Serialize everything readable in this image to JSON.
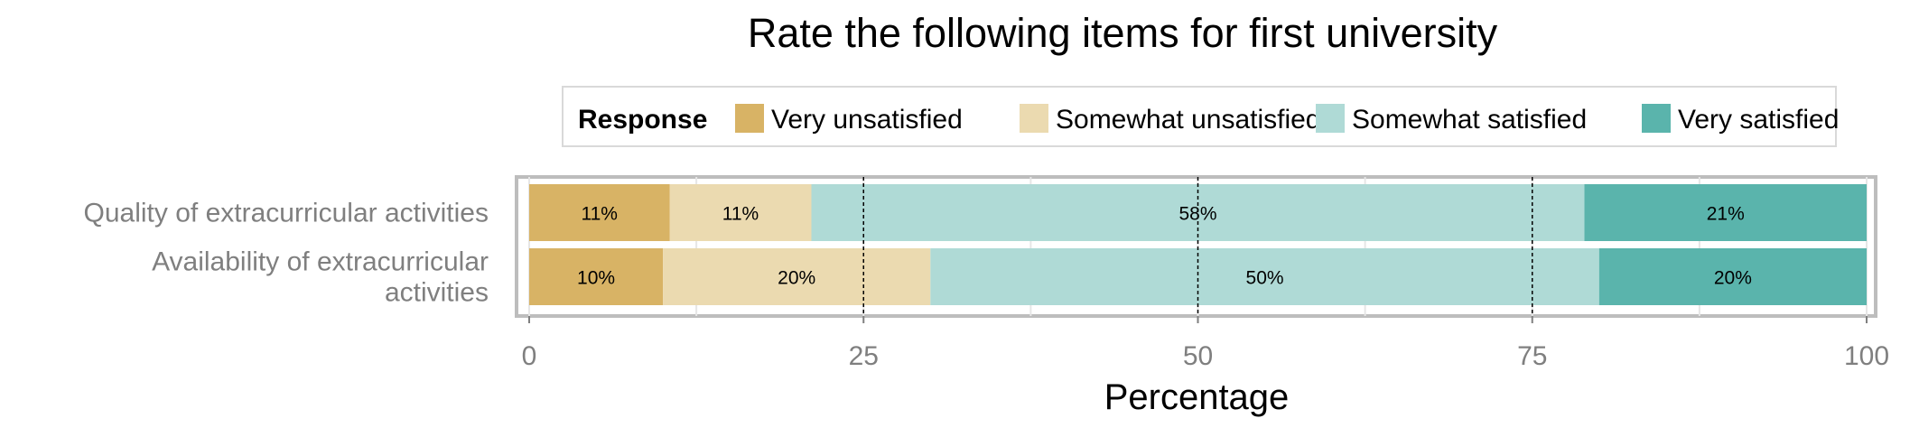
{
  "chart_data": {
    "type": "bar",
    "orientation": "horizontal",
    "stacked": true,
    "title": "Rate the following items for first university",
    "xlabel": "Percentage",
    "ylabel": "",
    "xlim": [
      0,
      100
    ],
    "xticks": [
      "0",
      "25",
      "50",
      "75",
      "100"
    ],
    "grid": true,
    "legend": {
      "title": "Response",
      "position": "top",
      "entries": [
        "Very unsatisfied",
        "Somewhat unsatisfied",
        "Somewhat satisfied",
        "Very satisfied"
      ]
    },
    "categories": [
      "Quality of extracurricular activities",
      "Availability of extracurricular activities"
    ],
    "category_lines": [
      [
        "Quality of extracurricular activities"
      ],
      [
        "Availability of extracurricular",
        "activities"
      ]
    ],
    "series": [
      {
        "name": "Very unsatisfied",
        "color": "#d8b365",
        "values": [
          10.5,
          10
        ],
        "labels": [
          "11%",
          "10%"
        ]
      },
      {
        "name": "Somewhat unsatisfied",
        "color": "#ebdab0",
        "values": [
          10.6,
          20
        ],
        "labels": [
          "11%",
          "20%"
        ]
      },
      {
        "name": "Somewhat satisfied",
        "color": "#afdad6",
        "values": [
          57.8,
          50
        ],
        "labels": [
          "58%",
          "50%"
        ]
      },
      {
        "name": "Very satisfied",
        "color": "#5ab4ac",
        "values": [
          21.1,
          20
        ],
        "labels": [
          "21%",
          "20%"
        ]
      }
    ]
  }
}
